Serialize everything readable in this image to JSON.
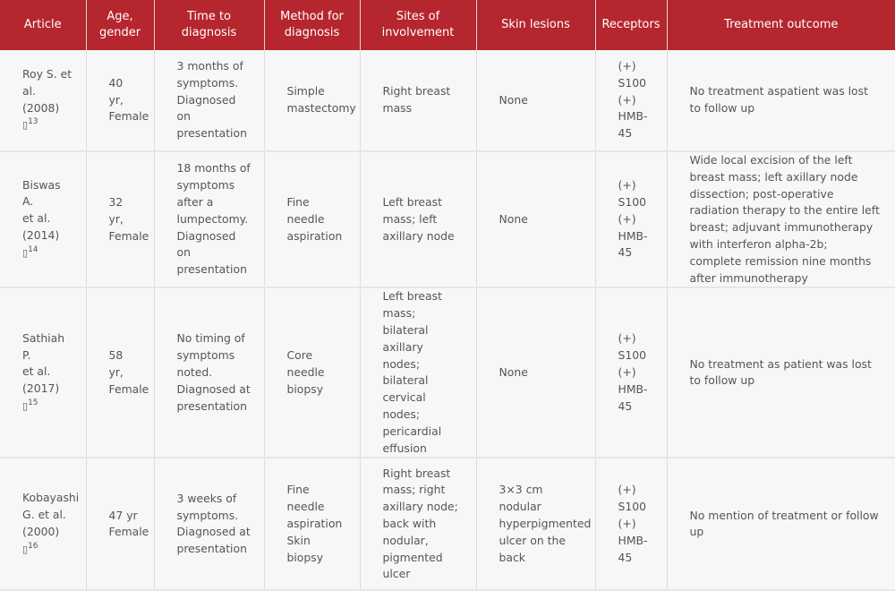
{
  "headers": [
    "Article",
    "Age,\ngender",
    "Time to\ndiagnosis",
    "Method for\ndiagnosis",
    "Sites of\ninvolvement",
    "Skin lesions",
    "Receptors",
    "Treatment outcome"
  ],
  "rows": [
    {
      "article": "Roy S. et\nal. (2008)\n",
      "ref": "13",
      "age_gender": "40 yr,\nFemale",
      "time_to_diagnosis": "3 months of\nsymptoms.\nDiagnosed on\npresentation",
      "method": "Simple\nmastectomy",
      "sites": "Right breast\nmass",
      "skin_lesions": "None",
      "receptors": "(+)\nS100\n(+)\nHMB-\n45",
      "outcome": "No treatment aspatient was lost to follow up"
    },
    {
      "article": "Biswas A.\net al.\n(2014) ",
      "ref": "14",
      "age_gender": "32 yr,\nFemale",
      "time_to_diagnosis": "18 months of\nsymptoms\nafter a\nlumpectomy.\nDiagnosed on\npresentation",
      "method": "Fine needle\naspiration",
      "sites": "Left breast\nmass; left\naxillary node",
      "skin_lesions": "None",
      "receptors": "(+)\nS100\n(+)\nHMB-\n45",
      "outcome": "Wide local excision of the left breast mass; left axillary node dissection; post-operative radiation therapy to the entire left breast; adjuvant immunotherapy with interferon alpha-2b; complete remission nine months after immunotherapy"
    },
    {
      "article": "Sathiah P.\net al.\n(2017) ",
      "ref": "15",
      "age_gender": "58 yr,\nFemale",
      "time_to_diagnosis": "No timing of\nsymptoms\nnoted.\nDiagnosed at\npresentation",
      "method": "Core needle\nbiopsy",
      "sites": "Left breast\nmass; bilateral\naxillary nodes;\nbilateral cervical\nnodes;\npericardial\neffusion",
      "skin_lesions": "None",
      "receptors": "(+)\nS100\n(+)\nHMB-\n45",
      "outcome": "No treatment as patient was lost to follow up"
    },
    {
      "article": "Kobayashi\nG. et al.\n(2000) ",
      "ref": "16",
      "age_gender": "47 yr\nFemale",
      "time_to_diagnosis": "3 weeks of\nsymptoms.\nDiagnosed at\npresentation",
      "method": "Fine needle\naspiration\nSkin biopsy",
      "sites": "Right breast\nmass; right\naxillary node;\nback with\nnodular,\npigmented\nulcer",
      "skin_lesions": "3×3 cm nodular\nhyperpigmented\nulcer on the\nback",
      "receptors": "(+)\nS100\n(+)\nHMB-\n45",
      "outcome": "No mention of treatment or follow up"
    }
  ]
}
